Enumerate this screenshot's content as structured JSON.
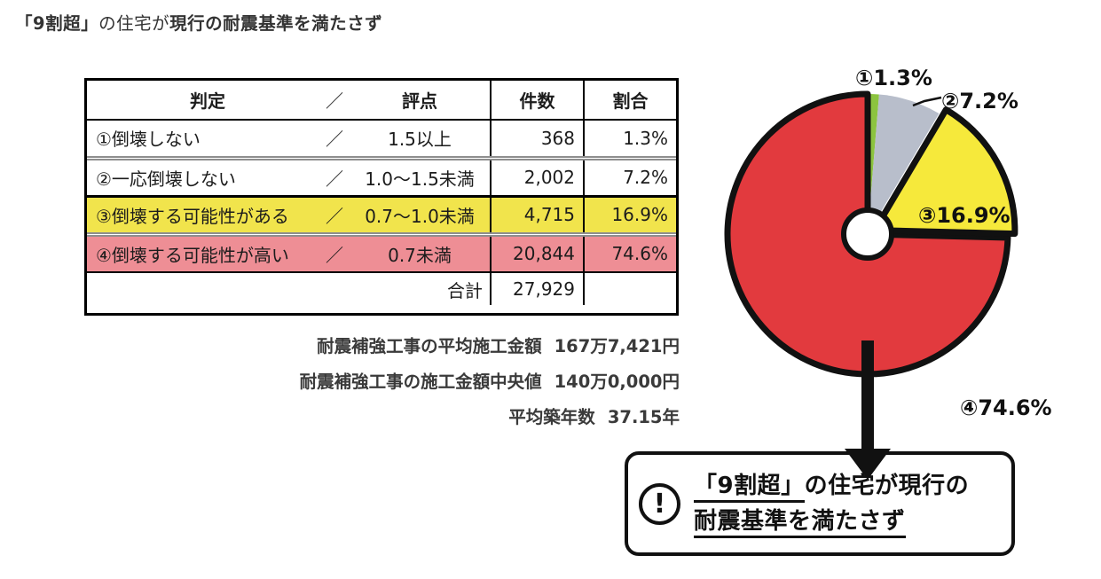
{
  "title": {
    "part1": "「9割超」",
    "part2": "の住宅が",
    "part3": "現行の耐震基準を満たさず"
  },
  "table": {
    "slash": "／",
    "header": {
      "judge": "判定",
      "score": "評点",
      "count": "件数",
      "ratio": "割合"
    },
    "rows": [
      {
        "name": "①倒壊しない",
        "score": "1.5以上",
        "count": "368",
        "ratio": "1.3%",
        "highlight": "none"
      },
      {
        "name": "②一応倒壊しない",
        "score": "1.0〜1.5未満",
        "count": "2,002",
        "ratio": "7.2%",
        "highlight": "none"
      },
      {
        "name": "③倒壊する可能性がある",
        "score": "0.7〜1.0未満",
        "count": "4,715",
        "ratio": "16.9%",
        "highlight": "yellow"
      },
      {
        "name": "④倒壊する可能性が高い",
        "score": "0.7未満",
        "count": "20,844",
        "ratio": "74.6%",
        "highlight": "pink"
      }
    ],
    "total_label": "合計",
    "total_count": "27,929"
  },
  "stats": [
    {
      "label": "耐震補強工事の平均施工金額",
      "value": "167万7,421円"
    },
    {
      "label": "耐震補強工事の施工金額中央値",
      "value": "140万0,000円"
    },
    {
      "label": "平均築年数",
      "value": "37.15年"
    }
  ],
  "chart_data": {
    "type": "pie",
    "donut": true,
    "direction": "clockwise",
    "start_angle_deg": 0,
    "categories": [
      "①倒壊しない",
      "②一応倒壊しない",
      "③倒壊する可能性がある",
      "④倒壊する可能性が高い"
    ],
    "values": [
      1.3,
      7.2,
      16.9,
      74.6
    ],
    "labels": [
      "①1.3%",
      "②7.2%",
      "③16.9%",
      "④74.6%"
    ],
    "colors": [
      "#8cc43f",
      "#b8becb",
      "#f6e93b",
      "#e23a3e"
    ],
    "outlined": [
      false,
      false,
      true,
      true
    ],
    "exploded_index": 2,
    "total_count": 27929
  },
  "callout": {
    "icon_glyph": "!",
    "line1_underlined": "「9割超」",
    "line1_rest": "の住宅が現行の",
    "line2": "耐震基準を満たさず"
  },
  "colors": {
    "pie_green": "#8cc43f",
    "pie_gray": "#b8becb",
    "pie_yellow": "#f6e93b",
    "pie_red": "#e23a3e",
    "row_yellow": "#f1e44c",
    "row_pink": "#ee8e95",
    "outline_black": "#111111"
  }
}
